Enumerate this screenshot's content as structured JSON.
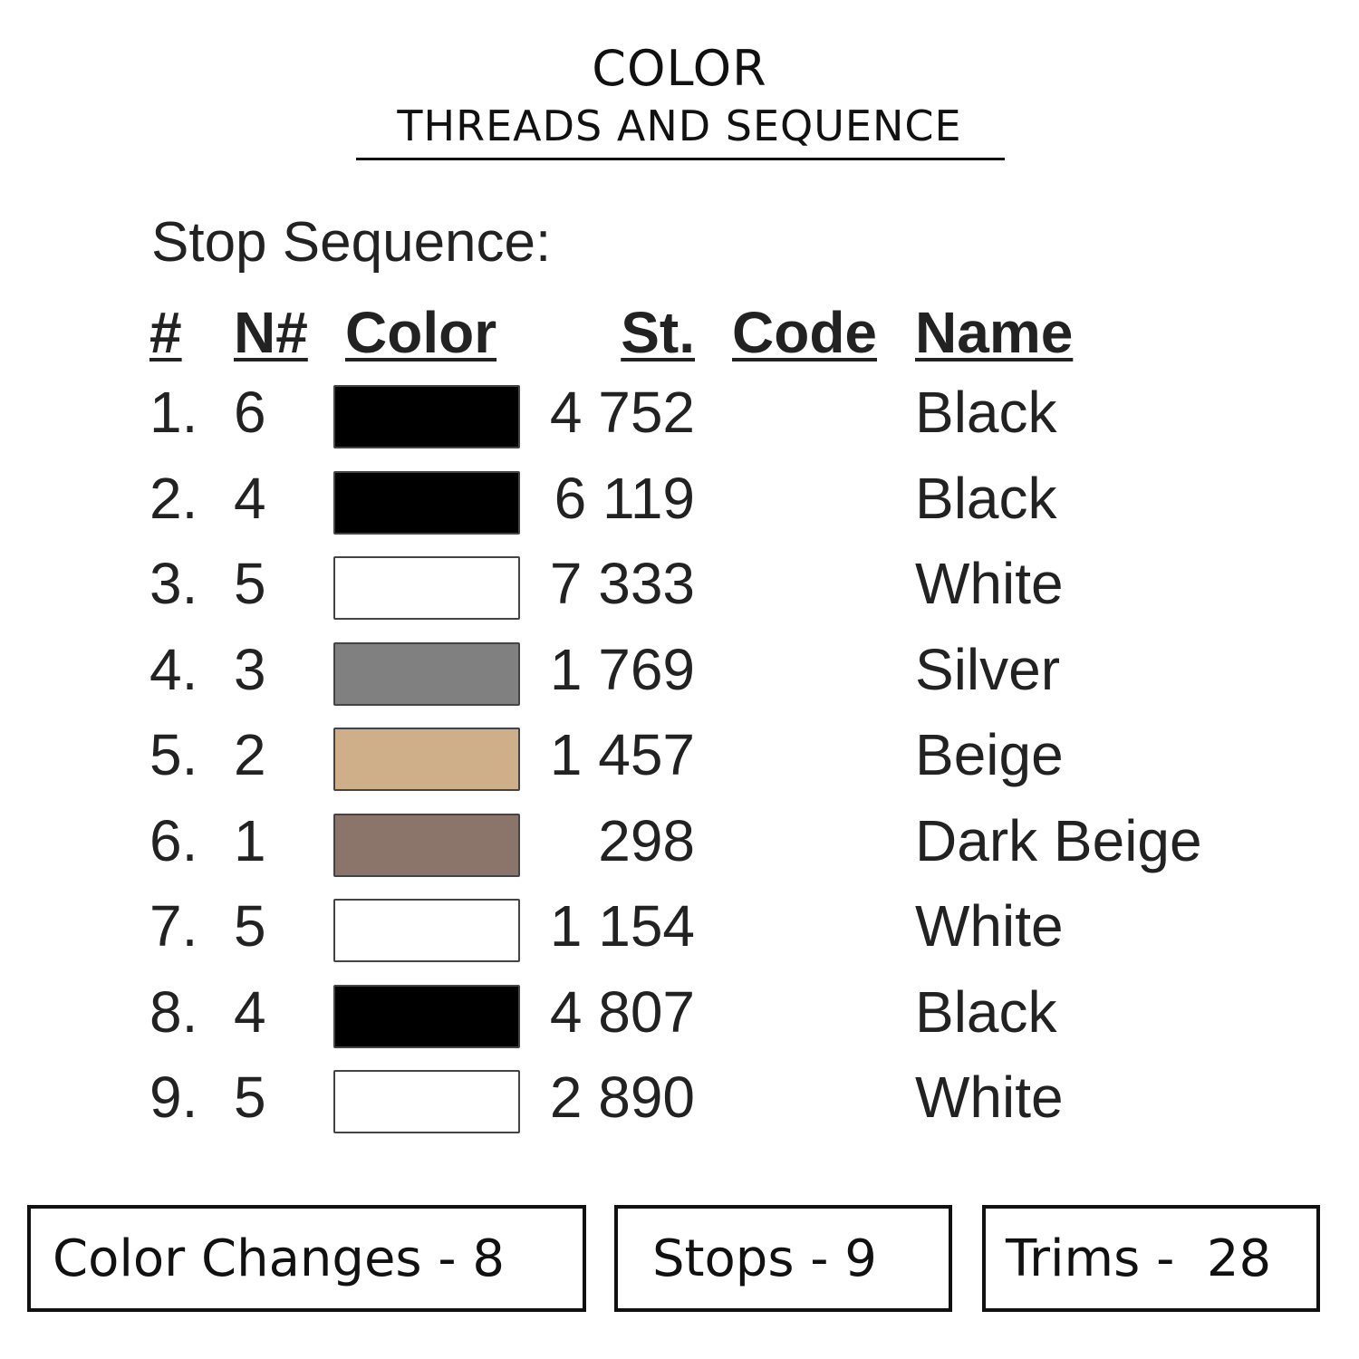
{
  "header": {
    "title": "COLOR",
    "subtitle": "THREADS AND SEQUENCE"
  },
  "section_label": "Stop Sequence:",
  "columns": {
    "num": "#",
    "needle": "N#",
    "color": "Color",
    "stitches": "St.",
    "code": "Code",
    "name": "Name"
  },
  "rows": [
    {
      "num": "1.",
      "needle": "6",
      "color": "#000000",
      "stitches": "4 752",
      "code": "",
      "name": "Black"
    },
    {
      "num": "2.",
      "needle": "4",
      "color": "#000000",
      "stitches": "6 119",
      "code": "",
      "name": "Black"
    },
    {
      "num": "3.",
      "needle": "5",
      "color": "#ffffff",
      "stitches": "7 333",
      "code": "",
      "name": "White"
    },
    {
      "num": "4.",
      "needle": "3",
      "color": "#808080",
      "stitches": "1 769",
      "code": "",
      "name": "Silver"
    },
    {
      "num": "5.",
      "needle": "2",
      "color": "#cfae8a",
      "stitches": "1 457",
      "code": "",
      "name": "Beige"
    },
    {
      "num": "6.",
      "needle": "1",
      "color": "#8b746a",
      "stitches": "298",
      "code": "",
      "name": "Dark Beige"
    },
    {
      "num": "7.",
      "needle": "5",
      "color": "#ffffff",
      "stitches": "1 154",
      "code": "",
      "name": "White"
    },
    {
      "num": "8.",
      "needle": "4",
      "color": "#000000",
      "stitches": "4 807",
      "code": "",
      "name": "Black"
    },
    {
      "num": "9.",
      "needle": "5",
      "color": "#ffffff",
      "stitches": "2 890",
      "code": "",
      "name": "White"
    }
  ],
  "summary": {
    "color_changes": "Color Changes - 8",
    "stops": "Stops - 9",
    "trims": "Trims -  28"
  }
}
